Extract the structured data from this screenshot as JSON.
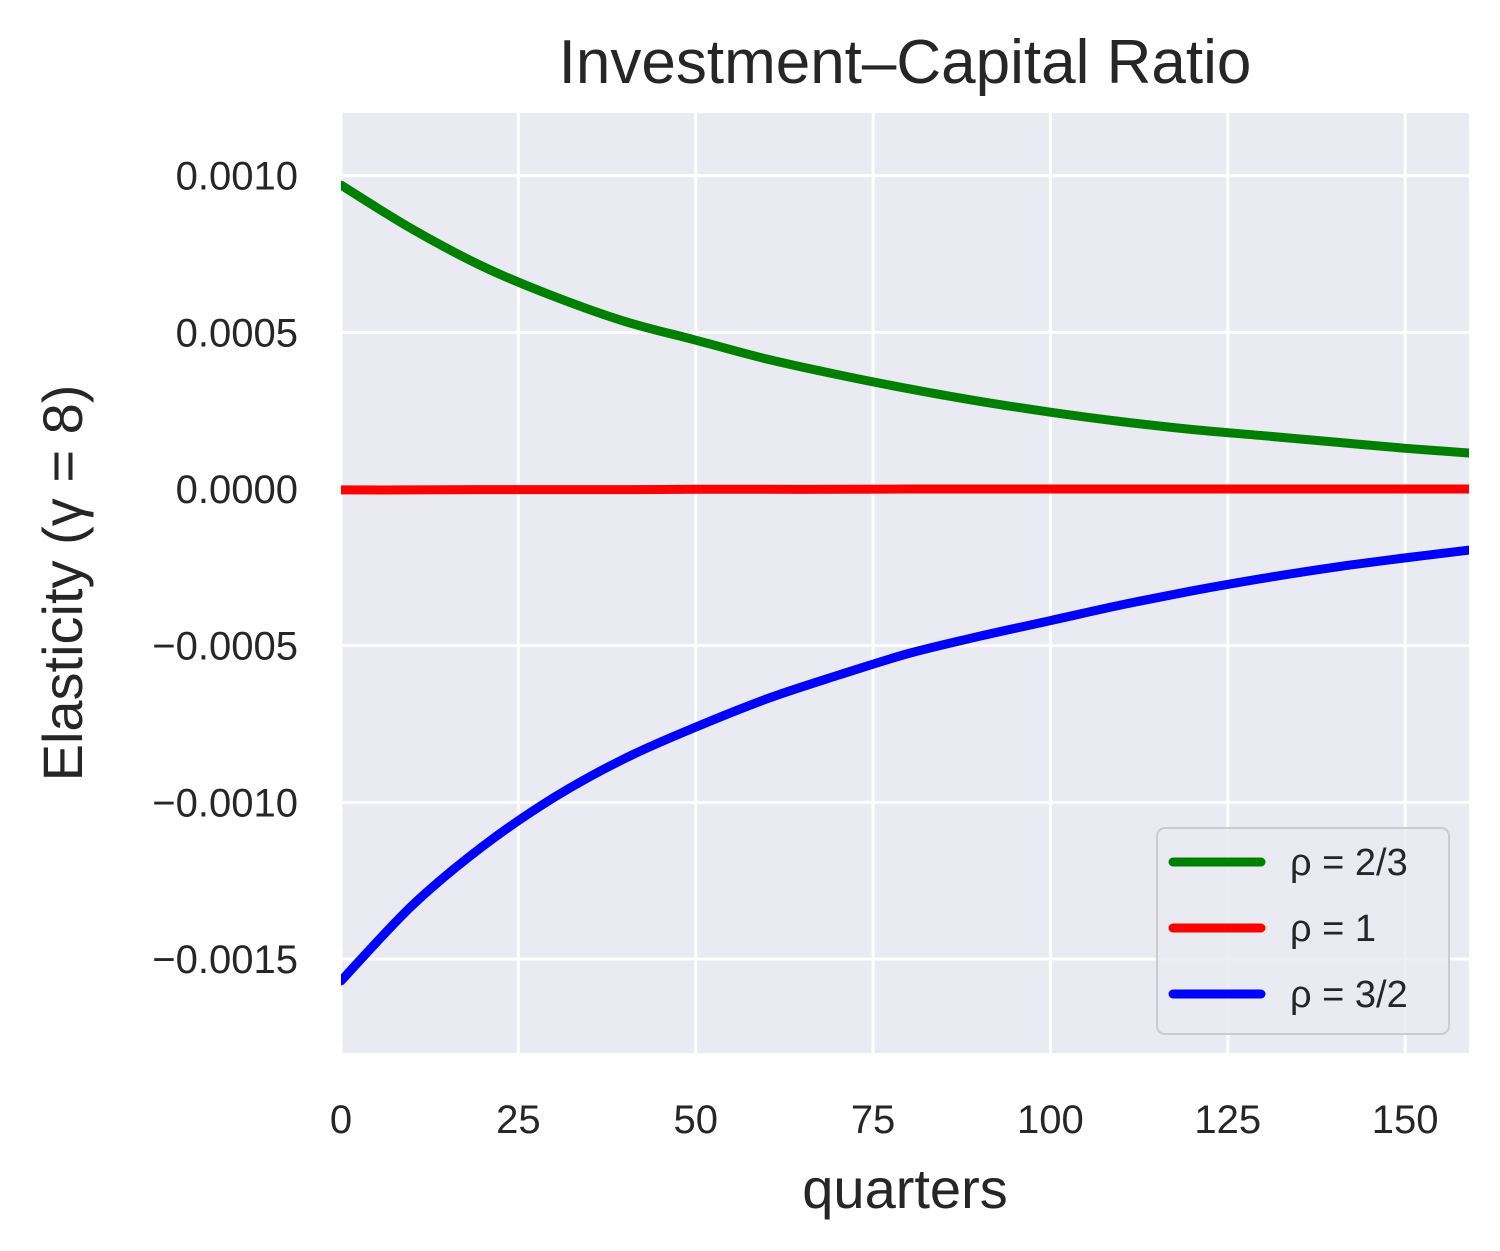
{
  "chart_data": {
    "type": "line",
    "title": "Investment–Capital Ratio",
    "xlabel": "quarters",
    "ylabel": "Elasticity (γ = 8)",
    "xlim": [
      0,
      159
    ],
    "ylim": [
      -0.0018,
      0.0012
    ],
    "x_ticks": [
      0,
      25,
      50,
      75,
      100,
      125,
      150
    ],
    "x_tick_labels": [
      "0",
      "25",
      "50",
      "75",
      "100",
      "125",
      "150"
    ],
    "y_ticks": [
      0.001,
      0.0005,
      0.0,
      -0.0005,
      -0.001,
      -0.0015
    ],
    "y_tick_labels": [
      "0.0010",
      "0.0005",
      "0.0000",
      "−0.0005",
      "−0.0010",
      "−0.0015"
    ],
    "grid": true,
    "legend_position": "lower-right",
    "x": [
      0,
      10,
      20,
      30,
      40,
      50,
      60,
      70,
      80,
      90,
      100,
      110,
      120,
      130,
      140,
      150,
      159
    ],
    "series": [
      {
        "name": "ρ = 2/3",
        "color": "#008000",
        "values": [
          0.00097,
          0.00083,
          0.00071,
          0.000615,
          0.000535,
          0.000475,
          0.000415,
          0.000365,
          0.00032,
          0.00028,
          0.000245,
          0.000215,
          0.00019,
          0.00017,
          0.00015,
          0.00013,
          0.000115
        ]
      },
      {
        "name": "ρ = 1",
        "color": "#ff0000",
        "values": [
          -3e-06,
          -3e-06,
          -2e-06,
          -2e-06,
          -2e-06,
          -1e-06,
          -1e-06,
          -1e-06,
          0.0,
          0.0,
          0.0,
          0.0,
          0.0,
          0.0,
          0.0,
          0.0,
          0.0
        ]
      },
      {
        "name": "ρ = 3/2",
        "color": "#0000ff",
        "values": [
          -0.00157,
          -0.00133,
          -0.00114,
          -0.000985,
          -0.00086,
          -0.00076,
          -0.00067,
          -0.000595,
          -0.000525,
          -0.00047,
          -0.00042,
          -0.00037,
          -0.000325,
          -0.000285,
          -0.00025,
          -0.00022,
          -0.000195
        ]
      }
    ]
  }
}
